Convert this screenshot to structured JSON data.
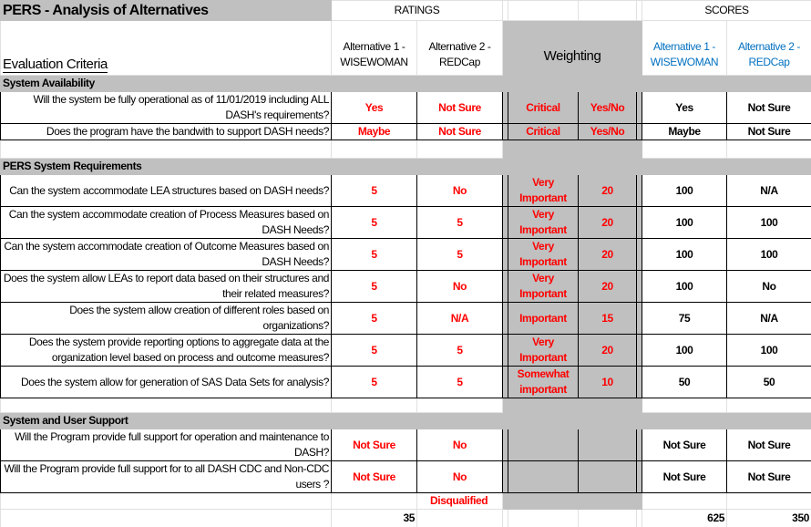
{
  "title": "PERS - Analysis of Alternatives",
  "headers": {
    "ratings": "RATINGS",
    "scores": "SCORES",
    "criteria": "Evaluation Criteria",
    "alt1": "Alternative 1 - WISEWOMAN",
    "alt2": "Alternative 2 - REDCap",
    "weighting": "Weighting",
    "score_alt1": "Alternative 1 - WISEWOMAN",
    "score_alt2": "Alternative 2 - REDCap"
  },
  "sections": [
    {
      "label": "System Availability",
      "rows": [
        {
          "q": "Will the system be fully operational as of 11/01/2019 including ALL DASH's requirements?",
          "r1": "Yes",
          "r2": "Not Sure",
          "w": "Critical",
          "wv": "Yes/No",
          "s1": "Yes",
          "s2": "Not Sure"
        },
        {
          "q": "Does the program have the bandwith to support DASH needs?",
          "r1": "Maybe",
          "r2": "Not Sure",
          "w": "Critical",
          "wv": "Yes/No",
          "s1": "Maybe",
          "s2": "Not Sure"
        }
      ]
    },
    {
      "label": "PERS System Requirements",
      "rows": [
        {
          "q": "Can the system accommodate LEA structures based on DASH needs?",
          "r1": "5",
          "r2": "No",
          "w": "Very Important",
          "wv": "20",
          "s1": "100",
          "s2": "N/A"
        },
        {
          "q": "Can the system accommodate creation of Process Measures based on DASH Needs?",
          "r1": "5",
          "r2": "5",
          "w": "Very Important",
          "wv": "20",
          "s1": "100",
          "s2": "100"
        },
        {
          "q": "Can the system accommodate creation of Outcome Measures based on DASH Needs?",
          "r1": "5",
          "r2": "5",
          "w": "Very Important",
          "wv": "20",
          "s1": "100",
          "s2": "100"
        },
        {
          "q": "Does the system allow LEAs to report data based on their structures and their related measures?",
          "r1": "5",
          "r2": "No",
          "w": "Very Important",
          "wv": "20",
          "s1": "100",
          "s2": "No"
        },
        {
          "q": "Does the system allow creation of different roles based on organizations?",
          "r1": "5",
          "r2": "N/A",
          "w": "Important",
          "wv": "15",
          "s1": "75",
          "s2": "N/A"
        },
        {
          "q": "Does the system provide reporting options to aggregate data at the organization level based on process and outcome measures?",
          "r1": "5",
          "r2": "5",
          "w": "Very Important",
          "wv": "20",
          "s1": "100",
          "s2": "100"
        },
        {
          "q": "Does the system allow for generation of SAS Data Sets for analysis?",
          "r1": "5",
          "r2": "5",
          "w": "Somewhat important",
          "wv": "10",
          "s1": "50",
          "s2": "50"
        }
      ]
    },
    {
      "label": "System and User Support",
      "rows": [
        {
          "q": "Will the Program provide full support for operation and maintenance to DASH?",
          "r1": "Not Sure",
          "r2": "No",
          "w": "",
          "wv": "",
          "s1": "Not Sure",
          "s2": "Not Sure"
        },
        {
          "q": "Will the Program provide full support for to all DASH CDC and Non-CDC users ?",
          "r1": "Not Sure",
          "r2": "No",
          "w": "",
          "wv": "",
          "s1": "Not Sure",
          "s2": "Not Sure"
        }
      ]
    }
  ],
  "disqualified": "Disqualified",
  "totals": {
    "alt1_rating": "35",
    "score_alt1": "625",
    "score_alt2": "350"
  },
  "colors": {
    "rating_text": "#ff0000",
    "score_header": "#0070c0",
    "gray": "#c0c0c0"
  }
}
